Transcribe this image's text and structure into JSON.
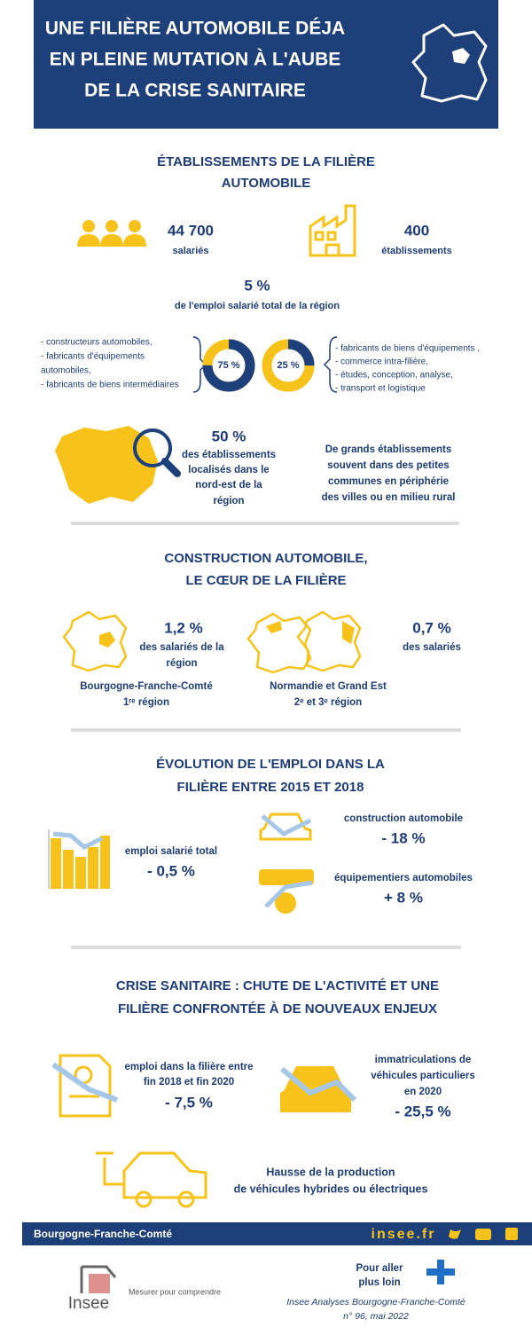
{
  "header": {
    "title": [
      "UNE FILIÈRE AUTOMOBILE DÉJA",
      "EN PLEINE MUTATION À L'AUBE",
      "DE LA CRISE SANITAIRE"
    ]
  },
  "etablissements": {
    "title": [
      "ÉTABLISSEMENTS DE LA FILIÈRE",
      "AUTOMOBILE"
    ],
    "salaries": {
      "value": "44 700",
      "label": "salariés"
    },
    "etablissements": {
      "value": "400",
      "label": "établissements"
    },
    "emploi": {
      "value": "5 %",
      "label": "de l'emploi salarié total de la région"
    },
    "left_list": [
      "- constructeurs automobiles,",
      "- fabricants d'équipements",
      "automobiles,",
      "- fabricants de biens intermédiaires"
    ],
    "donuts": [
      {
        "value": 75,
        "label": "75 %"
      },
      {
        "value": 25,
        "label": "25 %"
      }
    ],
    "right_list": [
      "- fabricants de biens d'équipements ,",
      "- commerce intra-filière,",
      "- études, conception, analyse,",
      "- transport et logistique"
    ],
    "localisation": {
      "value": "50 %",
      "label": [
        "des établissements",
        "localisés dans le",
        "nord-est de la",
        "région"
      ]
    },
    "note": [
      "De grands établissements",
      "souvent dans des petites",
      "communes en périphérie",
      "des villes ou en milieu rural"
    ]
  },
  "construction": {
    "title": [
      "CONSTRUCTION AUTOMOBILE,",
      "LE CŒUR DE LA FILIÈRE"
    ],
    "bfc": {
      "value": "1,2 %",
      "label": [
        "des salariés de la",
        "région"
      ],
      "region": "Bourgogne-Franche-Comté",
      "rank": "1ʳᵉ région"
    },
    "others": {
      "value": "0,7 %",
      "label": "des salariés",
      "region": "Normandie et Grand Est",
      "rank": "2ᵉ et 3ᵉ région"
    }
  },
  "evolution": {
    "title": [
      "ÉVOLUTION DE L'EMPLOI DANS LA",
      "FILIÈRE ENTRE 2015 ET 2018"
    ],
    "total": {
      "label": "emploi salarié total",
      "value": "- 0,5 %"
    },
    "construction": {
      "label": "construction automobile",
      "value": "- 18 %"
    },
    "equipementiers": {
      "label": "équipementiers automobiles",
      "value": "+ 8 %"
    }
  },
  "crise": {
    "title": [
      "CRISE SANITAIRE : CHUTE DE L'ACTIVITÉ ET UNE",
      "FILIÈRE CONFRONTÉE À DE NOUVEAUX ENJEUX"
    ],
    "emploi": {
      "label": [
        "emploi dans la filière entre",
        "fin 2018 et fin 2020"
      ],
      "value": "- 7,5 %"
    },
    "immatriculations": {
      "label": [
        "immatriculations de",
        "véhicules particuliers",
        "en 2020"
      ],
      "value": "- 25,5 %"
    },
    "hybrides": [
      "Hausse de la production",
      "de véhicules hybrides ou électriques"
    ]
  },
  "footer": {
    "region": "Bourgogne-Franche-Comté",
    "site": "insee.fr",
    "logo": "Insee",
    "slogan": "Mesurer pour comprendre",
    "more": [
      "Pour aller",
      "plus loin"
    ],
    "reference": [
      "Insee Analyses Bourgogne-Franche-Comté",
      "n° 96, mai 2022"
    ]
  }
}
